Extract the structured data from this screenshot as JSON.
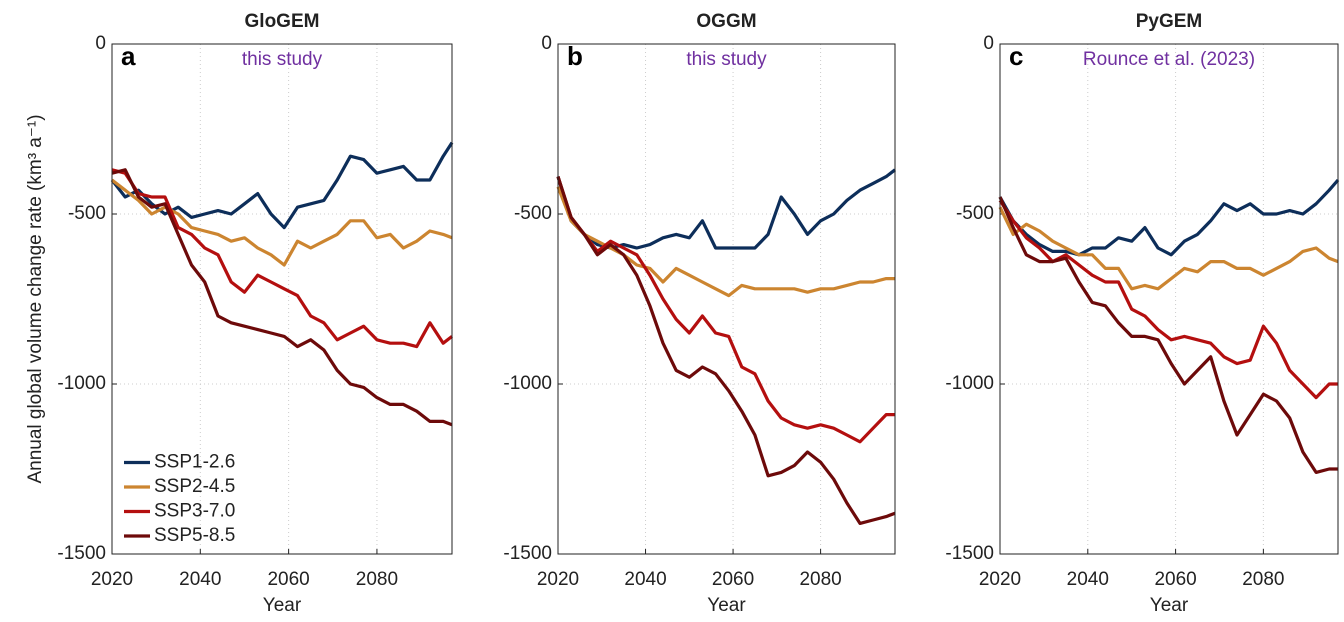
{
  "chart_data": [
    {
      "type": "line",
      "title": "GloGEM",
      "panel_label": "a",
      "annotation": "this study",
      "ylabel": "Annual global volume change rate (km³ a⁻¹)",
      "xlabel": "Year",
      "x": [
        2020,
        2023,
        2026,
        2029,
        2032,
        2035,
        2038,
        2041,
        2044,
        2047,
        2050,
        2053,
        2056,
        2059,
        2062,
        2065,
        2068,
        2071,
        2074,
        2077,
        2080,
        2083,
        2086,
        2089,
        2092,
        2095,
        2097
      ],
      "xlim": [
        2020,
        2097
      ],
      "xticks": [
        2020,
        2040,
        2060,
        2080
      ],
      "ylim": [
        -1500,
        0
      ],
      "yticks": [
        0,
        -500,
        -1000,
        -1500
      ],
      "grid": true,
      "legend": "lower left",
      "series": [
        {
          "name": "SSP1-2.6",
          "color": "#0d2e5a",
          "values": [
            -400,
            -450,
            -430,
            -470,
            -500,
            -480,
            -510,
            -500,
            -490,
            -500,
            -470,
            -440,
            -500,
            -540,
            -480,
            -470,
            -460,
            -400,
            -330,
            -340,
            -380,
            -370,
            -360,
            -400,
            -400,
            -330,
            -290
          ]
        },
        {
          "name": "SSP2-4.5",
          "color": "#cc8530",
          "values": [
            -400,
            -430,
            -460,
            -500,
            -480,
            -500,
            -540,
            -550,
            -560,
            -580,
            -570,
            -600,
            -620,
            -650,
            -580,
            -600,
            -580,
            -560,
            -520,
            -520,
            -570,
            -560,
            -600,
            -580,
            -550,
            -560,
            -570
          ]
        },
        {
          "name": "SSP3-7.0",
          "color": "#b40f0f",
          "values": [
            -370,
            -380,
            -440,
            -450,
            -450,
            -540,
            -560,
            -600,
            -620,
            -700,
            -730,
            -680,
            -700,
            -720,
            -740,
            -800,
            -820,
            -870,
            -850,
            -830,
            -870,
            -880,
            -880,
            -890,
            -820,
            -880,
            -860
          ]
        },
        {
          "name": "SSP5-8.5",
          "color": "#6d0a0a",
          "values": [
            -380,
            -370,
            -450,
            -480,
            -470,
            -560,
            -650,
            -700,
            -800,
            -820,
            -830,
            -840,
            -850,
            -860,
            -890,
            -870,
            -900,
            -960,
            -1000,
            -1010,
            -1040,
            -1060,
            -1060,
            -1080,
            -1110,
            -1110,
            -1120
          ]
        }
      ]
    },
    {
      "type": "line",
      "title": "OGGM",
      "panel_label": "b",
      "annotation": "this study",
      "xlabel": "Year",
      "x": [
        2020,
        2023,
        2026,
        2029,
        2032,
        2035,
        2038,
        2041,
        2044,
        2047,
        2050,
        2053,
        2056,
        2059,
        2062,
        2065,
        2068,
        2071,
        2074,
        2077,
        2080,
        2083,
        2086,
        2089,
        2092,
        2095,
        2097
      ],
      "xlim": [
        2020,
        2097
      ],
      "xticks": [
        2020,
        2040,
        2060,
        2080
      ],
      "ylim": [
        -1500,
        0
      ],
      "yticks": [
        0,
        -500,
        -1000,
        -1500
      ],
      "grid": true,
      "series": [
        {
          "name": "SSP1-2.6",
          "color": "#0d2e5a",
          "values": [
            -390,
            -520,
            -560,
            -590,
            -600,
            -590,
            -600,
            -590,
            -570,
            -560,
            -570,
            -520,
            -600,
            -600,
            -600,
            -600,
            -560,
            -450,
            -500,
            -560,
            -520,
            -500,
            -460,
            -430,
            -410,
            -390,
            -370
          ]
        },
        {
          "name": "SSP2-4.5",
          "color": "#cc8530",
          "values": [
            -420,
            -520,
            -560,
            -580,
            -600,
            -620,
            -650,
            -660,
            -700,
            -660,
            -680,
            -700,
            -720,
            -740,
            -710,
            -720,
            -720,
            -720,
            -720,
            -730,
            -720,
            -720,
            -710,
            -700,
            -700,
            -690,
            -690
          ]
        },
        {
          "name": "SSP3-7.0",
          "color": "#b40f0f",
          "values": [
            -390,
            -510,
            -560,
            -610,
            -580,
            -600,
            -620,
            -680,
            -750,
            -810,
            -850,
            -800,
            -850,
            -860,
            -950,
            -970,
            -1050,
            -1100,
            -1120,
            -1130,
            -1120,
            -1130,
            -1150,
            -1170,
            -1130,
            -1090,
            -1090
          ]
        },
        {
          "name": "SSP5-8.5",
          "color": "#6d0a0a",
          "values": [
            -390,
            -510,
            -560,
            -620,
            -590,
            -620,
            -680,
            -770,
            -880,
            -960,
            -980,
            -950,
            -970,
            -1020,
            -1080,
            -1150,
            -1270,
            -1260,
            -1240,
            -1200,
            -1230,
            -1280,
            -1350,
            -1410,
            -1400,
            -1390,
            -1380
          ]
        }
      ]
    },
    {
      "type": "line",
      "title": "PyGEM",
      "panel_label": "c",
      "annotation": "Rounce et al. (2023)",
      "xlabel": "Year",
      "x": [
        2020,
        2023,
        2026,
        2029,
        2032,
        2035,
        2038,
        2041,
        2044,
        2047,
        2050,
        2053,
        2056,
        2059,
        2062,
        2065,
        2068,
        2071,
        2074,
        2077,
        2080,
        2083,
        2086,
        2089,
        2092,
        2095,
        2097
      ],
      "xlim": [
        2020,
        2097
      ],
      "xticks": [
        2020,
        2040,
        2060,
        2080
      ],
      "ylim": [
        -1500,
        0
      ],
      "yticks": [
        0,
        -500,
        -1000,
        -1500
      ],
      "grid": true,
      "series": [
        {
          "name": "SSP1-2.6",
          "color": "#0d2e5a",
          "values": [
            -450,
            -520,
            -560,
            -590,
            -610,
            -610,
            -620,
            -600,
            -600,
            -570,
            -580,
            -540,
            -600,
            -620,
            -580,
            -560,
            -520,
            -470,
            -490,
            -470,
            -500,
            -500,
            -490,
            -500,
            -470,
            -430,
            -400
          ]
        },
        {
          "name": "SSP2-4.5",
          "color": "#cc8530",
          "values": [
            -480,
            -560,
            -530,
            -550,
            -580,
            -600,
            -620,
            -620,
            -660,
            -660,
            -720,
            -710,
            -720,
            -690,
            -660,
            -670,
            -640,
            -640,
            -660,
            -660,
            -680,
            -660,
            -640,
            -610,
            -600,
            -630,
            -640
          ]
        },
        {
          "name": "SSP3-7.0",
          "color": "#b40f0f",
          "values": [
            -460,
            -520,
            -570,
            -600,
            -640,
            -620,
            -650,
            -680,
            -700,
            -700,
            -780,
            -800,
            -840,
            -870,
            -860,
            -870,
            -880,
            -920,
            -940,
            -930,
            -830,
            -880,
            -960,
            -1000,
            -1040,
            -1000,
            -1000
          ]
        },
        {
          "name": "SSP5-8.5",
          "color": "#6d0a0a",
          "values": [
            -450,
            -540,
            -620,
            -640,
            -640,
            -630,
            -700,
            -760,
            -770,
            -820,
            -860,
            -860,
            -870,
            -940,
            -1000,
            -960,
            -920,
            -1050,
            -1150,
            -1090,
            -1030,
            -1050,
            -1100,
            -1200,
            -1260,
            -1250,
            -1250
          ]
        }
      ]
    }
  ]
}
